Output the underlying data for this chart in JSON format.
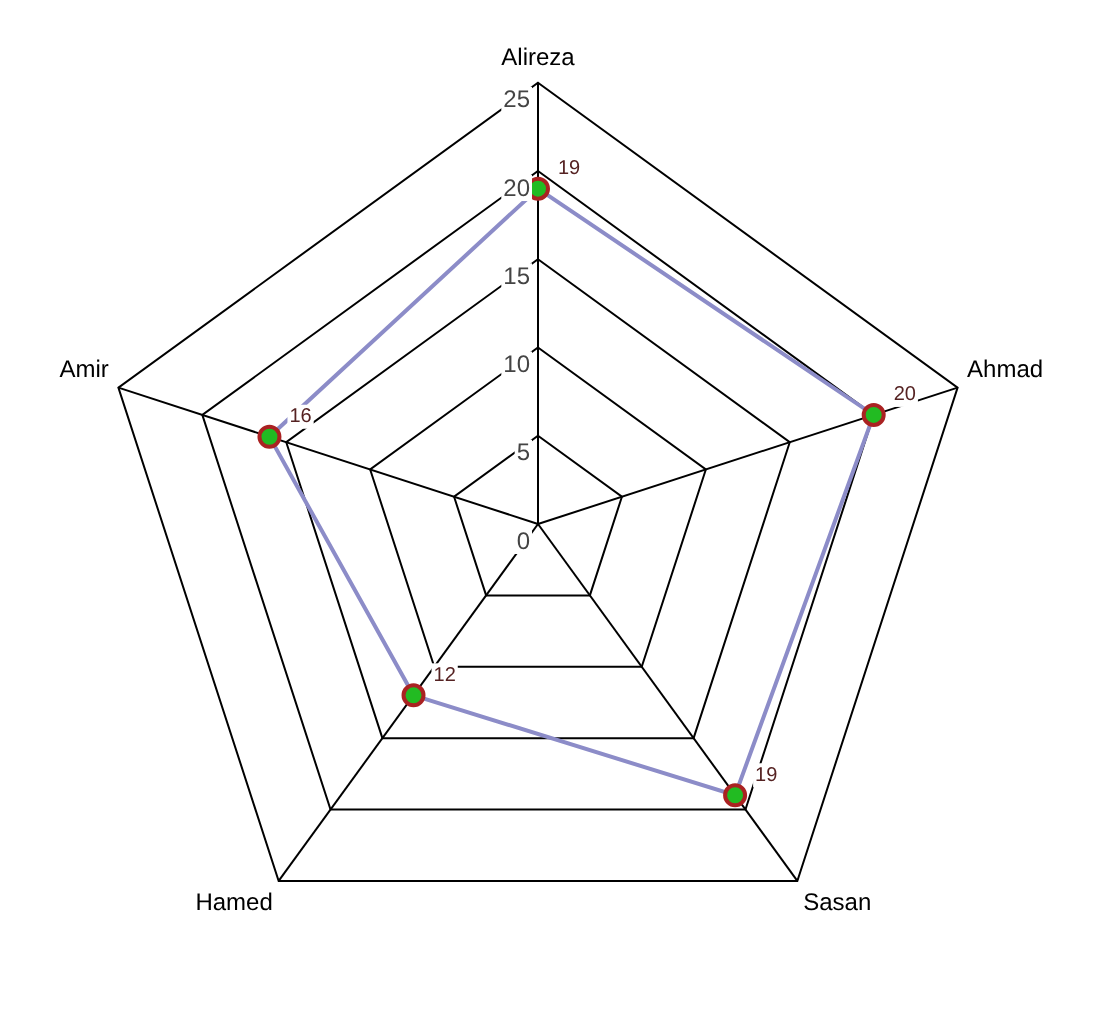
{
  "chart_data": {
    "type": "radar",
    "categories": [
      "Alireza",
      "Ahmad",
      "Sasan",
      "Hamed",
      "Amir"
    ],
    "series": [
      {
        "color": "#8c8cc8",
        "values": [
          19,
          20,
          19,
          12,
          16
        ]
      }
    ],
    "ylim": [
      0,
      25
    ],
    "yticks": [
      0,
      5,
      10,
      15,
      20,
      25
    ],
    "grid": true,
    "legend": false,
    "marker": "circle",
    "data_labels": true
  }
}
